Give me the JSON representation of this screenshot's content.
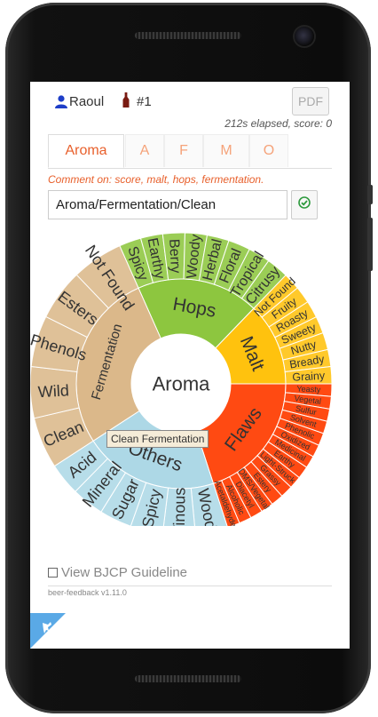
{
  "header": {
    "user_name": "Raoul",
    "bottle_label": "#1",
    "pdf_label": "PDF",
    "elapsed_text": "212s elapsed, score: 0"
  },
  "tabs": [
    {
      "label": "Aroma",
      "active": true
    },
    {
      "label": "A",
      "active": false
    },
    {
      "label": "F",
      "active": false
    },
    {
      "label": "M",
      "active": false
    },
    {
      "label": "O",
      "active": false
    }
  ],
  "comment_hint": "Comment on: score, malt, hops, fermentation.",
  "path_input": {
    "value": "Aroma/Fermentation/Clean"
  },
  "wheel": {
    "center_label": "Aroma",
    "tooltip": "Clean Fermentation",
    "colors": {
      "hops": "#8dc63f",
      "malt": "#ffc20e",
      "flaws": "#ff4a12",
      "others": "#add8e6",
      "fermentation": "#dbb88a"
    },
    "categories": [
      {
        "key": "hops",
        "label": "Hops",
        "leaves": [
          "Spicy",
          "Earthy",
          "Berry",
          "Woody",
          "Herbal",
          "Floral",
          "Tropical",
          "Citrusy"
        ]
      },
      {
        "key": "malt",
        "label": "Malt",
        "leaves": [
          "Not Found",
          "Fruity",
          "Roasty",
          "Sweety",
          "Nutty",
          "Bready",
          "Grainy"
        ]
      },
      {
        "key": "flaws",
        "label": "Flaws",
        "leaves": [
          "Yeasty",
          "Vegetal",
          "Sulfur",
          "Solvent",
          "Phenolic",
          "Oxidized",
          "Medicinal",
          "Earthy",
          "Light-Struck",
          "Grassy",
          "Estery",
          "DMS/Vegetal",
          "Diacetyl",
          "Alcoholic",
          "Acetaldehyde"
        ]
      },
      {
        "key": "others",
        "label": "Others",
        "leaves": [
          "Wood",
          "Vinous",
          "Spicy",
          "Sugar",
          "Mineral",
          "Acid"
        ]
      },
      {
        "key": "fermentation",
        "label": "Fermentation",
        "leaves": [
          "Clean",
          "Wild",
          "Phenols",
          "Esters",
          "Not Found"
        ]
      }
    ]
  },
  "guideline_label": "View BJCP Guideline",
  "version": "beer-feedback v1.11.0"
}
